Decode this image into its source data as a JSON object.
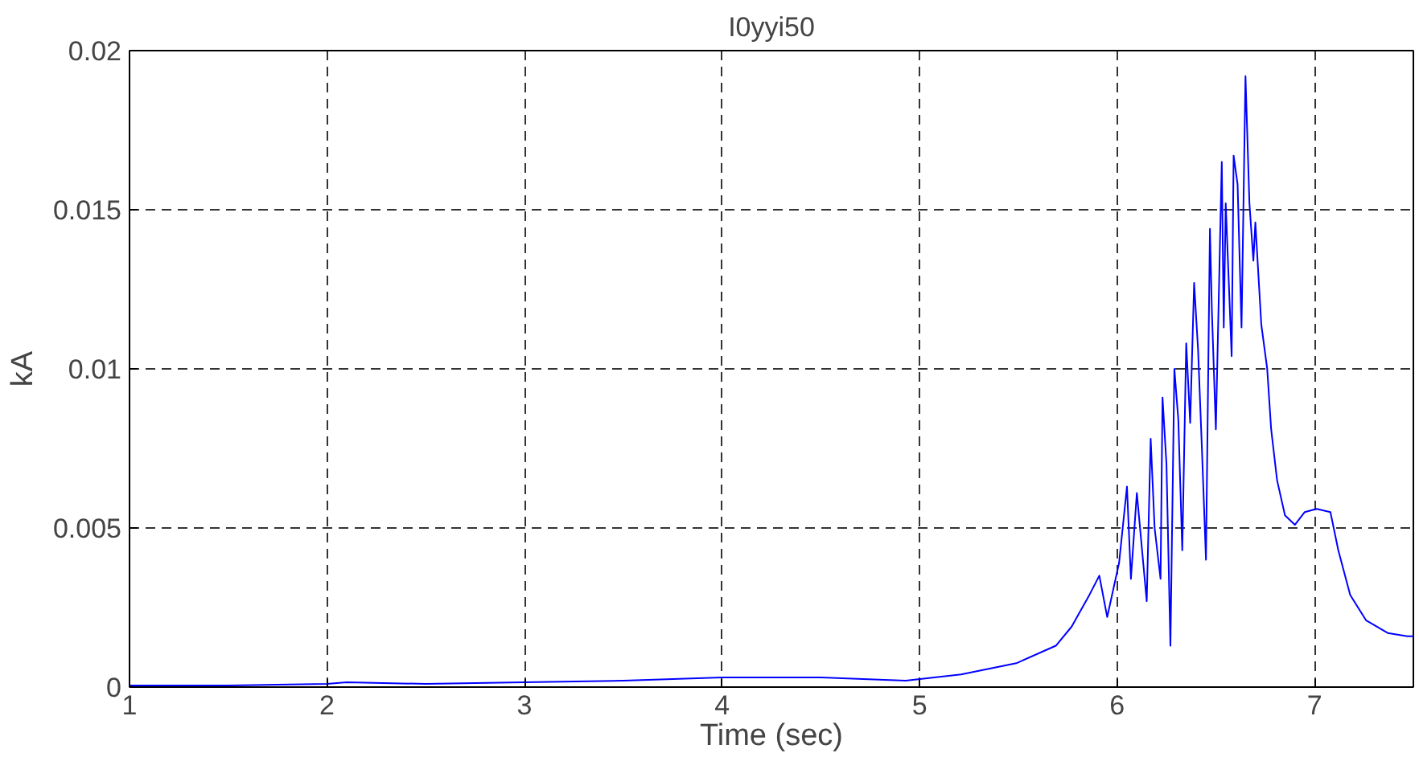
{
  "chart_data": {
    "type": "line",
    "title": "I0yyi50",
    "xlabel": "Time (sec)",
    "ylabel": "kA",
    "xlim": [
      1,
      7.5
    ],
    "ylim": [
      0,
      0.02
    ],
    "xticks": [
      1,
      2,
      3,
      4,
      5,
      6,
      7
    ],
    "yticks": [
      0,
      0.005,
      0.01,
      0.015,
      0.02
    ],
    "grid": true,
    "line_style": "solid",
    "series": [
      {
        "color": "#0000ff",
        "x": [
          1,
          1.5,
          2,
          2.1,
          2.5,
          3,
          3.5,
          4,
          4.5,
          4.93,
          5.21,
          5.49,
          5.69,
          5.77,
          5.86,
          5.91,
          5.95,
          6.01,
          6.05,
          6.07,
          6.1,
          6.15,
          6.17,
          6.19,
          6.22,
          6.23,
          6.25,
          6.27,
          6.29,
          6.31,
          6.33,
          6.35,
          6.37,
          6.39,
          6.41,
          6.43,
          6.45,
          6.47,
          6.48,
          6.5,
          6.53,
          6.54,
          6.55,
          6.58,
          6.59,
          6.61,
          6.63,
          6.65,
          6.67,
          6.69,
          6.7,
          6.73,
          6.76,
          6.78,
          6.81,
          6.85,
          6.9,
          6.95,
          7.01,
          7.08,
          7.12,
          7.18,
          7.26,
          7.37,
          7.47,
          7.5
        ],
        "values": [
          5e-05,
          5e-05,
          0.0001,
          0.00015,
          0.0001,
          0.00015,
          0.0002,
          0.0003,
          0.0003,
          0.0002,
          0.0004,
          0.00075,
          0.0013,
          0.0019,
          0.0029,
          0.0035,
          0.0022,
          0.0039,
          0.0063,
          0.0034,
          0.0061,
          0.0027,
          0.0078,
          0.005,
          0.0034,
          0.0091,
          0.007,
          0.0013,
          0.01,
          0.0084,
          0.0043,
          0.0108,
          0.0083,
          0.0127,
          0.0106,
          0.0074,
          0.004,
          0.0144,
          0.0118,
          0.0081,
          0.0165,
          0.0113,
          0.0152,
          0.0104,
          0.0167,
          0.0158,
          0.0113,
          0.0192,
          0.0152,
          0.0134,
          0.0146,
          0.0114,
          0.01,
          0.0081,
          0.0065,
          0.0054,
          0.0051,
          0.0055,
          0.0056,
          0.0055,
          0.0043,
          0.0029,
          0.0021,
          0.0017,
          0.0016,
          0.0016
        ]
      }
    ]
  }
}
